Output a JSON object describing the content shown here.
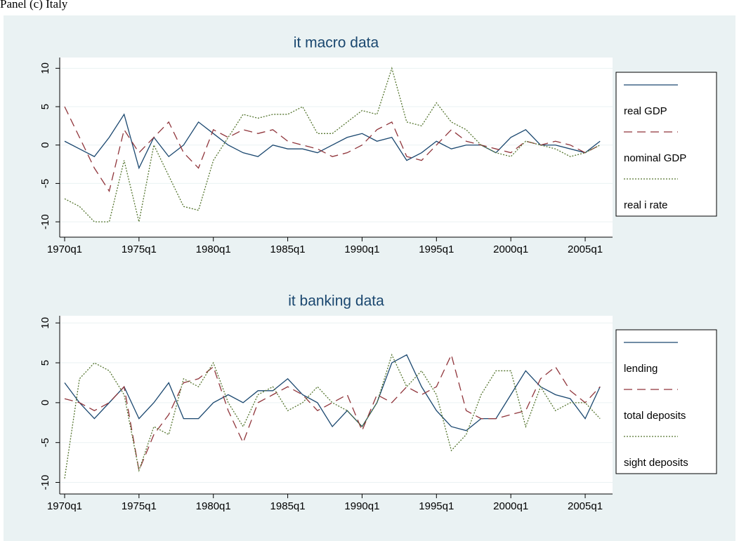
{
  "header": "Panel (c) Italy",
  "chart_data": [
    {
      "type": "line",
      "title": "it macro data",
      "x": [
        1970,
        1971,
        1972,
        1973,
        1974,
        1975,
        1976,
        1977,
        1978,
        1979,
        1980,
        1981,
        1982,
        1983,
        1984,
        1985,
        1986,
        1987,
        1988,
        1989,
        1990,
        1991,
        1992,
        1993,
        1994,
        1995,
        1996,
        1997,
        1998,
        1999,
        2000,
        2001,
        2002,
        2003,
        2004,
        2005,
        2006
      ],
      "series": [
        {
          "name": "real GDP",
          "color": "#1a476f",
          "dash": "solid",
          "values": [
            0.5,
            -0.5,
            -1.5,
            1,
            4,
            -3,
            1,
            -1.5,
            0,
            3,
            1.5,
            0,
            -1,
            -1.5,
            0,
            -0.5,
            -0.5,
            -1,
            0,
            1,
            1.5,
            0.5,
            1,
            -2,
            -1,
            0.5,
            -0.5,
            0,
            0,
            -1,
            1,
            2,
            0,
            0,
            -0.5,
            -1,
            0.5
          ]
        },
        {
          "name": "nominal GDP",
          "color": "#90353b",
          "dash": "dashed",
          "values": [
            5,
            1,
            -3,
            -6,
            2,
            -1,
            1,
            3,
            -1,
            -3,
            2,
            1,
            2,
            1.5,
            2,
            0.5,
            0,
            -0.5,
            -1.5,
            -1,
            0,
            2,
            3,
            -1.5,
            -2,
            0,
            2,
            0.5,
            0,
            -0.5,
            -1,
            0.5,
            0,
            0.5,
            0,
            -1,
            0
          ]
        },
        {
          "name": "real i rate",
          "color": "#55752f",
          "dash": "dotted",
          "values": [
            -7,
            -8,
            -10,
            -10,
            -2,
            -10,
            0,
            -4,
            -8,
            -8.5,
            -2,
            1,
            4,
            3.5,
            4,
            4,
            5,
            1.5,
            1.5,
            3,
            4.5,
            4,
            10,
            3,
            2.5,
            5.5,
            3,
            2,
            0,
            -1,
            -1.5,
            0.5,
            0,
            -0.5,
            -1.5,
            -1,
            0
          ]
        }
      ],
      "xlim": [
        1969.67,
        2006.84
      ],
      "ylim": [
        -12,
        11.4
      ],
      "xticks": [
        {
          "value": 1970,
          "label": "1970q1"
        },
        {
          "value": 1975,
          "label": "1975q1"
        },
        {
          "value": 1980,
          "label": "1980q1"
        },
        {
          "value": 1985,
          "label": "1985q1"
        },
        {
          "value": 1990,
          "label": "1990q1"
        },
        {
          "value": 1995,
          "label": "1995q1"
        },
        {
          "value": 2000,
          "label": "2000q1"
        },
        {
          "value": 2005,
          "label": "2005q1"
        }
      ],
      "yticks": [
        10,
        5,
        0,
        -5,
        -10
      ],
      "grid": true,
      "legend": "right"
    },
    {
      "type": "line",
      "title": "it banking data",
      "x": [
        1970,
        1971,
        1972,
        1973,
        1974,
        1975,
        1976,
        1977,
        1978,
        1979,
        1980,
        1981,
        1982,
        1983,
        1984,
        1985,
        1986,
        1987,
        1988,
        1989,
        1990,
        1991,
        1992,
        1993,
        1994,
        1995,
        1996,
        1997,
        1998,
        1999,
        2000,
        2001,
        2002,
        2003,
        2004,
        2005,
        2006
      ],
      "series": [
        {
          "name": "lending",
          "color": "#1a476f",
          "dash": "solid",
          "values": [
            2.5,
            0,
            -2,
            0,
            2,
            -2,
            0,
            2.5,
            -2,
            -2,
            0,
            1,
            0,
            1.5,
            1.5,
            3,
            1,
            0,
            -3,
            -1,
            -3,
            0,
            5,
            6,
            2,
            -1,
            -3,
            -3.5,
            -2,
            -2,
            1,
            4,
            2,
            1,
            0.5,
            -2,
            2
          ]
        },
        {
          "name": "total deposits",
          "color": "#90353b",
          "dash": "dashed",
          "values": [
            0.5,
            0,
            -1,
            0,
            2,
            -8.5,
            -4,
            -1.5,
            2.5,
            3,
            4.5,
            -1,
            -5,
            0,
            1,
            2,
            1,
            -1,
            0,
            1,
            -3.5,
            1,
            0,
            2,
            1,
            2,
            6,
            -1,
            -2,
            -2,
            -1.5,
            -1,
            3,
            4.5,
            1.5,
            0,
            2
          ]
        },
        {
          "name": "sight deposits",
          "color": "#55752f",
          "dash": "dotted",
          "values": [
            -9.5,
            3,
            5,
            4,
            1,
            -8.5,
            -3,
            -4,
            3,
            2,
            5,
            0,
            -3,
            1,
            2,
            -1,
            0,
            2,
            0,
            -1,
            -3,
            0,
            6,
            2,
            4,
            1,
            -6,
            -4,
            1,
            4,
            4,
            -3,
            2,
            -1,
            0,
            0,
            -2
          ]
        }
      ],
      "xlim": [
        1969.67,
        2006.84
      ],
      "ylim": [
        -11.45,
        10.9
      ],
      "xticks": [
        {
          "value": 1970,
          "label": "1970q1"
        },
        {
          "value": 1975,
          "label": "1975q1"
        },
        {
          "value": 1980,
          "label": "1980q1"
        },
        {
          "value": 1985,
          "label": "1985q1"
        },
        {
          "value": 1990,
          "label": "1990q1"
        },
        {
          "value": 1995,
          "label": "1995q1"
        },
        {
          "value": 2000,
          "label": "2000q1"
        },
        {
          "value": 2005,
          "label": "2005q1"
        }
      ],
      "yticks": [
        10,
        5,
        0,
        -5,
        -10
      ],
      "grid": true,
      "legend": "right"
    }
  ]
}
